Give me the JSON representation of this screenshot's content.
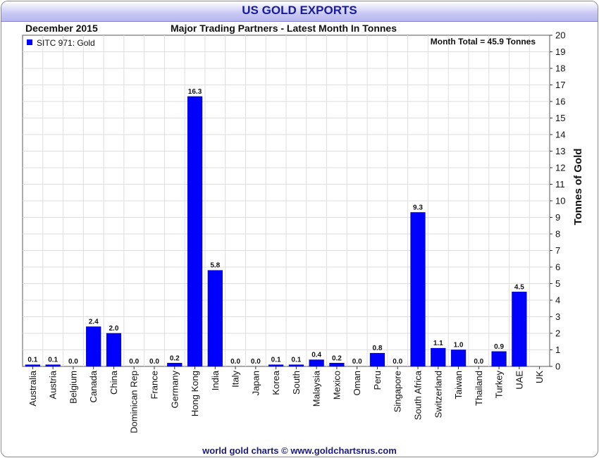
{
  "title": "US GOLD EXPORTS",
  "footer": "world gold charts © www.goldchartsrus.com",
  "colors": {
    "bar": "#0000ff",
    "title": "#1a1a9a",
    "grid": "#dedede"
  },
  "chart_data": {
    "type": "bar",
    "date_label": "December 2015",
    "title": "Major Trading Partners - Latest Month In Tonnes",
    "month_total": "Month Total = 45.9 Tonnes",
    "legend": "SITC 971: Gold",
    "ylabel": "Tonnes of Gold",
    "xlabel": "",
    "ylim": [
      0,
      20
    ],
    "categories": [
      "Australia",
      "Austria",
      "Belgium",
      "Canada",
      "China",
      "Dominican Rep",
      "France",
      "Germany",
      "Hong Kong",
      "India",
      "Italy",
      "Japan",
      "Korea",
      "South",
      "Malaysia",
      "Mexico",
      "Oman",
      "Peru",
      "Singapore",
      "South Africa",
      "Switzerland",
      "Taiwan",
      "Thailand",
      "Turkey",
      "UAE",
      "UK"
    ],
    "values": [
      0.1,
      0.1,
      0.0,
      2.4,
      2.0,
      0.0,
      0.0,
      0.2,
      16.3,
      5.8,
      0.0,
      0.0,
      0.1,
      0.1,
      0.4,
      0.2,
      0.0,
      0.8,
      0.0,
      9.3,
      1.1,
      1.0,
      0.0,
      0.9,
      4.5,
      null
    ],
    "value_labels": [
      "0.1",
      "0.1",
      "0.0",
      "2.4",
      "2.0",
      "0.0",
      "0.0",
      "0.2",
      "16.3",
      "5.8",
      "0.0",
      "0.0",
      "0.1",
      "0.1",
      "0.4",
      "0.2",
      "0.0",
      "0.8",
      "0.0",
      "9.3",
      "1.1",
      "1.0",
      "0.0",
      "0.9",
      "4.5",
      ""
    ],
    "yticks": [
      "0",
      "1",
      "2",
      "3",
      "4",
      "5",
      "6",
      "7",
      "8",
      "9",
      "10",
      "11",
      "12",
      "13",
      "14",
      "15",
      "16",
      "17",
      "18",
      "19",
      "20"
    ]
  }
}
